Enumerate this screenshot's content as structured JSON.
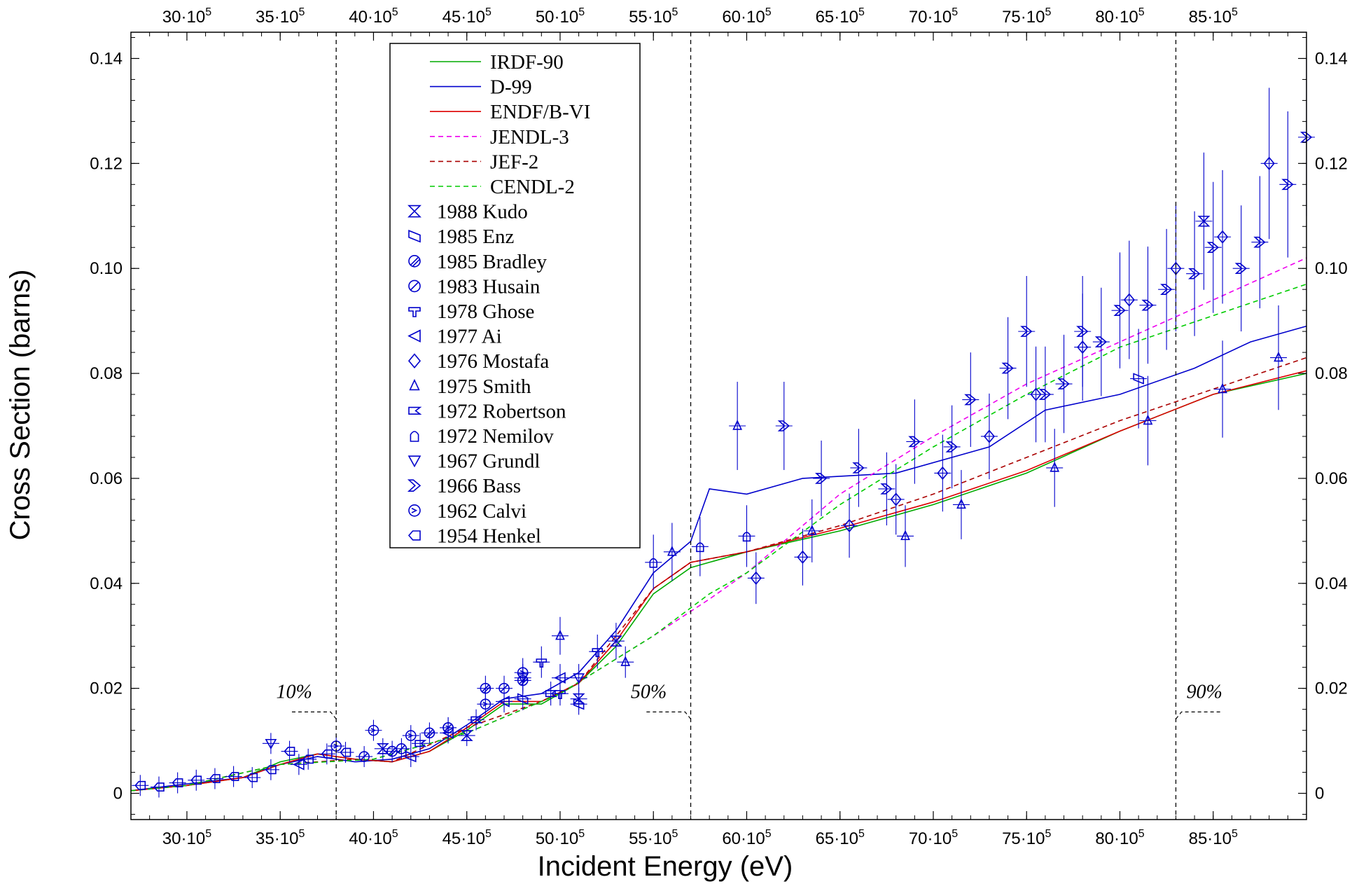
{
  "chart_data": {
    "type": "line",
    "title": "",
    "xlabel": "Incident Energy (eV)",
    "ylabel": "Cross Section (barns)",
    "xlim": [
      2700000,
      9000000
    ],
    "ylim": [
      -0.005,
      0.145
    ],
    "x_ticks": [
      {
        "value": 3000000,
        "label": "30·10",
        "exp": "5"
      },
      {
        "value": 3500000,
        "label": "35·10",
        "exp": "5"
      },
      {
        "value": 4000000,
        "label": "40·10",
        "exp": "5"
      },
      {
        "value": 4500000,
        "label": "45·10",
        "exp": "5"
      },
      {
        "value": 5000000,
        "label": "50·10",
        "exp": "5"
      },
      {
        "value": 5500000,
        "label": "55·10",
        "exp": "5"
      },
      {
        "value": 6000000,
        "label": "60·10",
        "exp": "5"
      },
      {
        "value": 6500000,
        "label": "65·10",
        "exp": "5"
      },
      {
        "value": 7000000,
        "label": "70·10",
        "exp": "5"
      },
      {
        "value": 7500000,
        "label": "75·10",
        "exp": "5"
      },
      {
        "value": 8000000,
        "label": "80·10",
        "exp": "5"
      },
      {
        "value": 8500000,
        "label": "85·10",
        "exp": "5"
      }
    ],
    "y_ticks": [
      {
        "value": 0,
        "label": "0"
      },
      {
        "value": 0.02,
        "label": "0.02"
      },
      {
        "value": 0.04,
        "label": "0.04"
      },
      {
        "value": 0.06,
        "label": "0.06"
      },
      {
        "value": 0.08,
        "label": "0.08"
      },
      {
        "value": 0.1,
        "label": "0.10"
      },
      {
        "value": 0.12,
        "label": "0.12"
      },
      {
        "value": 0.14,
        "label": "0.14"
      }
    ],
    "grid": false,
    "legend_position": "top-left",
    "markers": [
      {
        "x": 3800000,
        "label": "10%"
      },
      {
        "x": 5700000,
        "label": "50%"
      },
      {
        "x": 8300000,
        "label": "90%"
      }
    ],
    "series": [
      {
        "name": "IRDF-90",
        "kind": "line",
        "style": "solid",
        "color": "#00aa00",
        "x": [
          2700000,
          3000000,
          3300000,
          3500000,
          3700000,
          3900000,
          4100000,
          4300000,
          4500000,
          4700000,
          4900000,
          5100000,
          5300000,
          5500000,
          5700000,
          6000000,
          6500000,
          7000000,
          7500000,
          8000000,
          8500000,
          9000000
        ],
        "y": [
          0.0005,
          0.0015,
          0.003,
          0.006,
          0.0075,
          0.0065,
          0.006,
          0.008,
          0.012,
          0.017,
          0.017,
          0.021,
          0.028,
          0.038,
          0.043,
          0.046,
          0.05,
          0.055,
          0.061,
          0.069,
          0.076,
          0.08
        ]
      },
      {
        "name": "D-99",
        "kind": "line",
        "style": "solid",
        "color": "#0000cc",
        "x": [
          2700000,
          3000000,
          3300000,
          3500000,
          3700000,
          3900000,
          4100000,
          4300000,
          4500000,
          4700000,
          4900000,
          5100000,
          5300000,
          5500000,
          5700000,
          5800000,
          6000000,
          6300000,
          6800000,
          7300000,
          7600000,
          8000000,
          8400000,
          8700000,
          9000000
        ],
        "y": [
          0.0005,
          0.0018,
          0.003,
          0.0055,
          0.007,
          0.006,
          0.0065,
          0.0085,
          0.013,
          0.018,
          0.019,
          0.023,
          0.031,
          0.042,
          0.048,
          0.058,
          0.057,
          0.06,
          0.061,
          0.066,
          0.073,
          0.076,
          0.081,
          0.086,
          0.089
        ]
      },
      {
        "name": "ENDF/B-VI",
        "kind": "line",
        "style": "solid",
        "color": "#dd0000",
        "x": [
          2700000,
          3000000,
          3300000,
          3500000,
          3700000,
          3900000,
          4100000,
          4300000,
          4500000,
          4700000,
          4900000,
          5100000,
          5300000,
          5500000,
          5700000,
          6000000,
          6500000,
          7000000,
          7500000,
          8000000,
          8500000,
          9000000
        ],
        "y": [
          0.0005,
          0.0015,
          0.003,
          0.0055,
          0.0075,
          0.0065,
          0.006,
          0.008,
          0.0125,
          0.0175,
          0.0175,
          0.021,
          0.029,
          0.039,
          0.044,
          0.046,
          0.0505,
          0.0555,
          0.0615,
          0.069,
          0.076,
          0.0805
        ]
      },
      {
        "name": "JENDL-3",
        "kind": "line",
        "style": "dashed",
        "color": "#ee00ee",
        "x": [
          2700000,
          3000000,
          3500000,
          4000000,
          4500000,
          5000000,
          5500000,
          5800000,
          6000000,
          6500000,
          7000000,
          7500000,
          8000000,
          8500000,
          9000000
        ],
        "y": [
          0.0005,
          0.0015,
          0.0055,
          0.0065,
          0.0115,
          0.019,
          0.03,
          0.037,
          0.042,
          0.057,
          0.068,
          0.078,
          0.086,
          0.094,
          0.102
        ]
      },
      {
        "name": "JEF-2",
        "kind": "line",
        "style": "dashed",
        "color": "#aa0000",
        "x": [
          2700000,
          3000000,
          3500000,
          3900000,
          4100000,
          4500000,
          4900000,
          5100000,
          5500000,
          5700000,
          6000000,
          6500000,
          7000000,
          7500000,
          8000000,
          8500000,
          9000000
        ],
        "y": [
          0.0005,
          0.0015,
          0.0055,
          0.0065,
          0.006,
          0.0125,
          0.0175,
          0.021,
          0.039,
          0.044,
          0.046,
          0.051,
          0.057,
          0.064,
          0.071,
          0.077,
          0.083
        ]
      },
      {
        "name": "CENDL-2",
        "kind": "line",
        "style": "dashed",
        "color": "#00cc00",
        "x": [
          2700000,
          3000000,
          3500000,
          4000000,
          4500000,
          5000000,
          5500000,
          5800000,
          6000000,
          6500000,
          7000000,
          7500000,
          8000000,
          8500000,
          9000000
        ],
        "y": [
          0.0005,
          0.0015,
          0.0055,
          0.0065,
          0.0115,
          0.019,
          0.03,
          0.038,
          0.042,
          0.055,
          0.066,
          0.076,
          0.085,
          0.091,
          0.097
        ]
      },
      {
        "name": "1988 Kudo",
        "kind": "points",
        "marker": "hourglass",
        "color": "#0000cc",
        "x": [
          4050000,
          4500000,
          5100000,
          5300000,
          8450000
        ],
        "y": [
          0.0085,
          0.011,
          0.018,
          0.029,
          0.109
        ]
      },
      {
        "name": "1985 Enz",
        "kind": "points",
        "marker": "parallelogram",
        "color": "#0000cc",
        "x": [
          4200000,
          4800000,
          5100000,
          8100000
        ],
        "y": [
          0.007,
          0.018,
          0.017,
          0.079
        ]
      },
      {
        "name": "1985 Bradley",
        "kind": "points",
        "marker": "circle-slash",
        "color": "#0000cc",
        "x": [
          4100000,
          4300000,
          4600000,
          4800000
        ],
        "y": [
          0.008,
          0.0115,
          0.02,
          0.0215
        ]
      },
      {
        "name": "1983 Husain",
        "kind": "points",
        "marker": "circle-slash2",
        "color": "#0000cc",
        "x": [
          3950000,
          4150000,
          4400000,
          4700000
        ],
        "y": [
          0.007,
          0.0085,
          0.0125,
          0.02
        ]
      },
      {
        "name": "1978 Ghose",
        "kind": "points",
        "marker": "tee",
        "color": "#0000cc",
        "x": [
          4900000,
          5000000,
          5200000
        ],
        "y": [
          0.025,
          0.019,
          0.027
        ]
      },
      {
        "name": "1977 Ai",
        "kind": "points",
        "marker": "triangle-left",
        "color": "#0000cc",
        "x": [
          3600000,
          4400000,
          4700000,
          5000000
        ],
        "y": [
          0.0055,
          0.0115,
          0.0175,
          0.022
        ]
      },
      {
        "name": "1976 Mostafa",
        "kind": "points",
        "marker": "diamond",
        "color": "#0000cc",
        "x": [
          6050000,
          6300000,
          6550000,
          6800000,
          7050000,
          7300000,
          7550000,
          7800000,
          8050000,
          8300000,
          8550000,
          8800000
        ],
        "y": [
          0.041,
          0.045,
          0.051,
          0.056,
          0.061,
          0.068,
          0.076,
          0.085,
          0.094,
          0.1,
          0.106,
          0.12
        ]
      },
      {
        "name": "1975 Smith",
        "kind": "points",
        "marker": "triangle",
        "color": "#0000cc",
        "x": [
          5000000,
          5350000,
          5600000,
          5950000,
          6350000,
          6850000,
          7150000,
          7650000,
          8150000,
          8550000,
          8850000
        ],
        "y": [
          0.03,
          0.025,
          0.046,
          0.07,
          0.05,
          0.049,
          0.055,
          0.062,
          0.071,
          0.077,
          0.083
        ]
      },
      {
        "name": "1972 Robertson",
        "kind": "points",
        "marker": "flag",
        "color": "#0000cc",
        "x": [
          4250000,
          4550000,
          4950000
        ],
        "y": [
          0.0095,
          0.014,
          0.019
        ]
      },
      {
        "name": "1972 Nemilov",
        "kind": "points",
        "marker": "arch",
        "color": "#0000cc",
        "x": [
          5500000,
          5750000,
          6000000
        ],
        "y": [
          0.044,
          0.047,
          0.049
        ]
      },
      {
        "name": "1967 Grundl",
        "kind": "points",
        "marker": "down-triangle",
        "color": "#0000cc",
        "x": [
          3450000,
          4800000,
          5100000
        ],
        "y": [
          0.0095,
          0.022,
          0.022
        ]
      },
      {
        "name": "1966 Bass",
        "kind": "points",
        "marker": "chevron",
        "color": "#0000cc",
        "x": [
          6200000,
          6400000,
          6600000,
          6750000,
          6900000,
          7100000,
          7200000,
          7400000,
          7500000,
          7600000,
          7700000,
          7800000,
          7900000,
          8000000,
          8150000,
          8250000,
          8400000,
          8500000,
          8650000,
          8750000,
          8900000,
          9000000
        ],
        "y": [
          0.07,
          0.06,
          0.062,
          0.058,
          0.067,
          0.066,
          0.075,
          0.081,
          0.088,
          0.076,
          0.078,
          0.088,
          0.086,
          0.092,
          0.093,
          0.096,
          0.099,
          0.104,
          0.1,
          0.105,
          0.116,
          0.125
        ]
      },
      {
        "name": "1962 Calvi",
        "kind": "points",
        "marker": "circle-arrow",
        "color": "#0000cc",
        "x": [
          3800000,
          4000000,
          4200000,
          4400000,
          4600000,
          4800000
        ],
        "y": [
          0.009,
          0.012,
          0.011,
          0.0125,
          0.017,
          0.023
        ]
      },
      {
        "name": "1954 Henkel",
        "kind": "points",
        "marker": "pentagon",
        "color": "#0000cc",
        "x": [
          2750000,
          2850000,
          2950000,
          3050000,
          3150000,
          3250000,
          3350000,
          3450000,
          3550000,
          3650000,
          3750000,
          3850000
        ],
        "y": [
          0.0015,
          0.0012,
          0.002,
          0.0025,
          0.0028,
          0.0032,
          0.003,
          0.0045,
          0.008,
          0.0065,
          0.0075,
          0.0078
        ]
      }
    ]
  }
}
